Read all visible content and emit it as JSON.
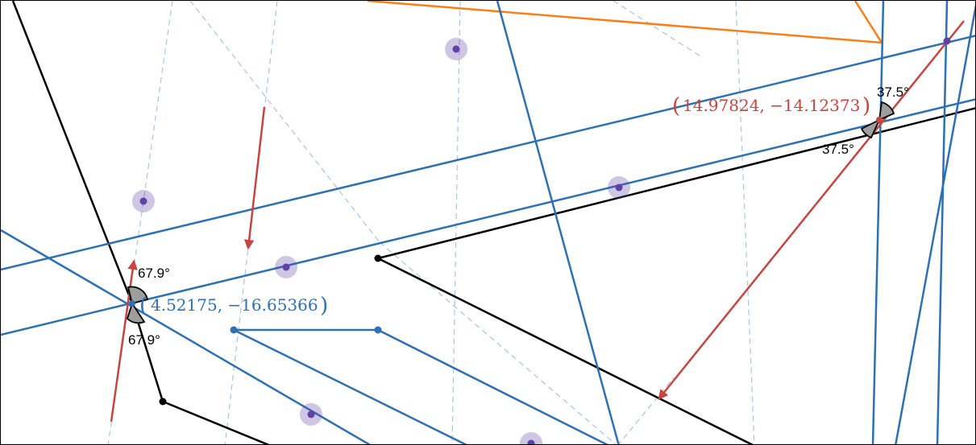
{
  "colors": {
    "blue": "#2d70b3",
    "black": "#000000",
    "orange": "#fa7e19",
    "red": "#c74440",
    "purple": "#6042a6",
    "dashed": "#a8c6e6",
    "angle_fill": "#9e9e9e"
  },
  "labels": {
    "angle_left_top": "67.9°",
    "angle_left_bottom": "67.9°",
    "angle_right_top": "37.5°",
    "angle_right_bottom": "37.5°",
    "point_left_coords": "4.52175, −16.65366",
    "point_right_coords": "14.97824, −14.12373",
    "paren_open": "(",
    "paren_close": ")"
  },
  "icons": {
    "vector_arrow": "arrow-icon",
    "highlighted_point": "point-icon",
    "angle_marker": "angle-wedge-icon"
  }
}
